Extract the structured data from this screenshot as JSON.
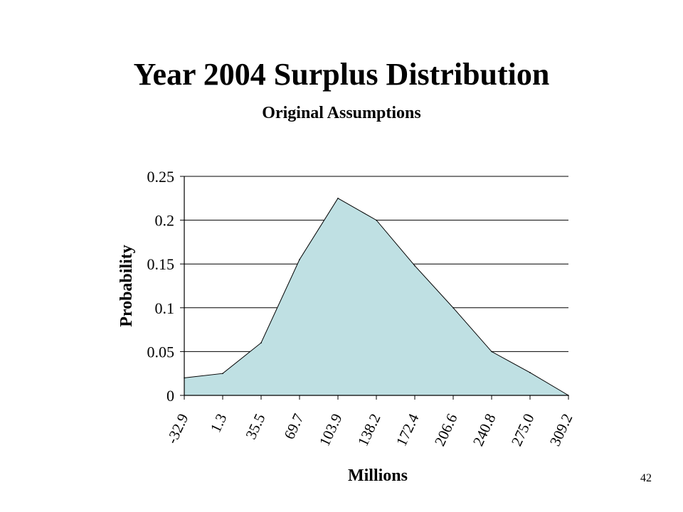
{
  "slide": {
    "title": "Year 2004 Surplus Distribution",
    "subtitle": "Original Assumptions",
    "page_number": "42"
  },
  "chart_data": {
    "type": "area",
    "x_tick_labels": [
      "-32.9",
      "1.3",
      "35.5",
      "69.7",
      "103.9",
      "138.2",
      "172.4",
      "206.6",
      "240.8",
      "275.0",
      "309.2"
    ],
    "x": [
      -32.9,
      1.3,
      35.5,
      69.7,
      103.9,
      138.2,
      172.4,
      206.6,
      240.8,
      275.0,
      309.2
    ],
    "values": [
      0.02,
      0.025,
      0.06,
      0.155,
      0.225,
      0.2,
      0.148,
      0.1,
      0.05,
      0.026,
      0.0
    ],
    "xlabel": "Millions",
    "ylabel": "Probability",
    "ylim": [
      0,
      0.25
    ],
    "y_ticks": [
      "0",
      "0.05",
      "0.1",
      "0.15",
      "0.2",
      "0.25"
    ],
    "grid": "horizontal",
    "fill_color": "#bfe0e3",
    "line_color": "#000000"
  }
}
